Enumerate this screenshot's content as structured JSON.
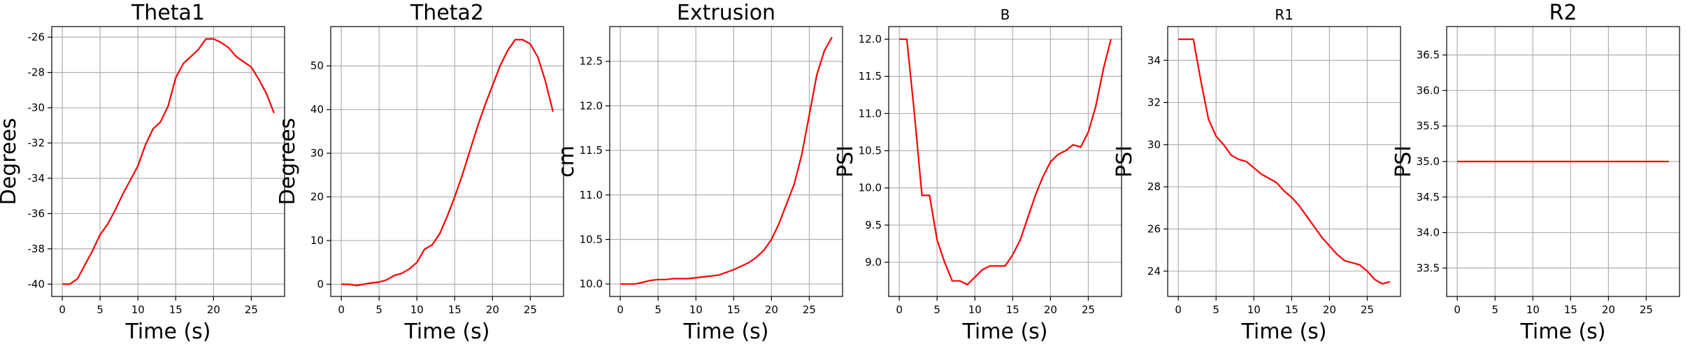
{
  "chart_data": [
    {
      "type": "line",
      "title": "Theta1",
      "xlabel": "Time (s)",
      "ylabel": "Degrees",
      "grid": true,
      "x": [
        0,
        1,
        2,
        3,
        4,
        5,
        6,
        7,
        8,
        9,
        10,
        11,
        12,
        13,
        14,
        15,
        16,
        17,
        18,
        19,
        20,
        21,
        22,
        23,
        24,
        25,
        26,
        27,
        28
      ],
      "series": [
        {
          "color": "red",
          "values": [
            -40,
            -40,
            -39.7,
            -38.9,
            -38.1,
            -37.2,
            -36.6,
            -35.8,
            -34.9,
            -34.1,
            -33.3,
            -32.1,
            -31.2,
            -30.8,
            -29.9,
            -28.3,
            -27.5,
            -27.1,
            -26.7,
            -26.1,
            -26.1,
            -26.3,
            -26.6,
            -27.1,
            -27.4,
            -27.7,
            -28.4,
            -29.2,
            -30.3
          ]
        }
      ],
      "xlim": [
        -1.4,
        29.4
      ],
      "xticks": [
        0,
        5,
        10,
        15,
        20,
        25
      ],
      "ylim": [
        -40.7,
        -25.4
      ],
      "yticks": [
        -40,
        -38,
        -36,
        -34,
        -32,
        -30,
        -28,
        -26
      ]
    },
    {
      "type": "line",
      "title": "Theta2",
      "xlabel": "Time (s)",
      "ylabel": "Degrees",
      "grid": true,
      "x": [
        0,
        1,
        2,
        3,
        4,
        5,
        6,
        7,
        8,
        9,
        10,
        11,
        12,
        13,
        14,
        15,
        16,
        17,
        18,
        19,
        20,
        21,
        22,
        23,
        24,
        25,
        26,
        27,
        28
      ],
      "series": [
        {
          "color": "red",
          "values": [
            0,
            0,
            -0.3,
            0,
            0.3,
            0.5,
            1,
            2,
            2.5,
            3.5,
            5,
            8,
            9,
            11.5,
            15.5,
            20,
            25,
            30.5,
            36,
            41,
            45.5,
            50,
            53.5,
            56,
            56,
            55,
            52,
            46.5,
            39.5
          ]
        }
      ],
      "xlim": [
        -1.4,
        29.4
      ],
      "xticks": [
        0,
        5,
        10,
        15,
        20,
        25
      ],
      "ylim": [
        -2.8,
        59
      ],
      "yticks": [
        0,
        10,
        20,
        30,
        40,
        50
      ]
    },
    {
      "type": "line",
      "title": "Extrusion",
      "xlabel": "Time (s)",
      "ylabel": "cm",
      "grid": true,
      "x": [
        0,
        1,
        2,
        3,
        4,
        5,
        6,
        7,
        8,
        9,
        10,
        11,
        12,
        13,
        14,
        15,
        16,
        17,
        18,
        19,
        20,
        21,
        22,
        23,
        24,
        25,
        26,
        27,
        28
      ],
      "series": [
        {
          "color": "red",
          "values": [
            10,
            10,
            10,
            10.02,
            10.04,
            10.05,
            10.05,
            10.06,
            10.06,
            10.06,
            10.07,
            10.08,
            10.09,
            10.1,
            10.13,
            10.16,
            10.2,
            10.24,
            10.3,
            10.38,
            10.5,
            10.68,
            10.9,
            11.12,
            11.45,
            11.9,
            12.35,
            12.62,
            12.77
          ]
        }
      ],
      "xlim": [
        -1.4,
        29.4
      ],
      "xticks": [
        0,
        5,
        10,
        15,
        20,
        25
      ],
      "ylim": [
        9.86,
        12.89
      ],
      "yticks": [
        {
          "value": 10,
          "label": "10.0"
        },
        10.5,
        {
          "value": 11,
          "label": "11.0"
        },
        11.5,
        {
          "value": 12,
          "label": "12.0"
        },
        12.5
      ]
    },
    {
      "type": "line",
      "title": "B",
      "xlabel": "Time (s)",
      "ylabel": "PSI",
      "grid": true,
      "x": [
        0,
        1,
        2,
        3,
        4,
        5,
        6,
        7,
        8,
        9,
        10,
        11,
        12,
        13,
        14,
        15,
        16,
        17,
        18,
        19,
        20,
        21,
        22,
        23,
        24,
        25,
        26,
        27,
        28
      ],
      "series": [
        {
          "color": "red",
          "values": [
            12,
            12,
            11,
            9.9,
            9.9,
            9.3,
            9,
            8.75,
            8.75,
            8.7,
            8.8,
            8.9,
            8.95,
            8.95,
            8.95,
            9.1,
            9.3,
            9.6,
            9.9,
            10.15,
            10.35,
            10.45,
            10.5,
            10.58,
            10.55,
            10.75,
            11.1,
            11.6,
            12
          ]
        }
      ],
      "xlim": [
        -1.4,
        29.4
      ],
      "xticks": [
        0,
        5,
        10,
        15,
        20,
        25
      ],
      "ylim": [
        8.54,
        12.17
      ],
      "yticks": [
        {
          "value": 9,
          "label": "9.0"
        },
        9.5,
        {
          "value": 10,
          "label": "10.0"
        },
        10.5,
        {
          "value": 11,
          "label": "11.0"
        },
        11.5,
        {
          "value": 12,
          "label": "12.0"
        }
      ]
    },
    {
      "type": "line",
      "title": "R1",
      "xlabel": "Time (s)",
      "ylabel": "PSI",
      "grid": true,
      "x": [
        0,
        1,
        2,
        3,
        4,
        5,
        6,
        7,
        8,
        9,
        10,
        11,
        12,
        13,
        14,
        15,
        16,
        17,
        18,
        19,
        20,
        21,
        22,
        23,
        24,
        25,
        26,
        27,
        28
      ],
      "series": [
        {
          "color": "red",
          "values": [
            35,
            35,
            35,
            33,
            31.2,
            30.4,
            30,
            29.5,
            29.3,
            29.2,
            28.9,
            28.6,
            28.4,
            28.2,
            27.8,
            27.5,
            27.1,
            26.6,
            26.1,
            25.6,
            25.2,
            24.8,
            24.5,
            24.4,
            24.3,
            24,
            23.6,
            23.4,
            23.5
          ]
        }
      ],
      "xlim": [
        -1.4,
        29.4
      ],
      "xticks": [
        0,
        5,
        10,
        15,
        20,
        25
      ],
      "ylim": [
        22.8,
        35.6
      ],
      "yticks": [
        24,
        26,
        28,
        30,
        32,
        34
      ]
    },
    {
      "type": "line",
      "title": "R2",
      "xlabel": "Time (s)",
      "ylabel": "PSI",
      "grid": true,
      "x": [
        0,
        1,
        2,
        3,
        4,
        5,
        6,
        7,
        8,
        9,
        10,
        11,
        12,
        13,
        14,
        15,
        16,
        17,
        18,
        19,
        20,
        21,
        22,
        23,
        24,
        25,
        26,
        27,
        28
      ],
      "series": [
        {
          "color": "red",
          "values": [
            35,
            35,
            35,
            35,
            35,
            35,
            35,
            35,
            35,
            35,
            35,
            35,
            35,
            35,
            35,
            35,
            35,
            35,
            35,
            35,
            35,
            35,
            35,
            35,
            35,
            35,
            35,
            35,
            35
          ]
        }
      ],
      "xlim": [
        -1.4,
        29.4
      ],
      "xticks": [
        0,
        5,
        10,
        15,
        20,
        25
      ],
      "ylim": [
        33.1,
        36.9
      ],
      "yticks": [
        33.5,
        {
          "value": 34,
          "label": "34.0"
        },
        34.5,
        {
          "value": 35,
          "label": "35.0"
        },
        35.5,
        {
          "value": 36,
          "label": "36.0"
        },
        36.5
      ]
    }
  ]
}
